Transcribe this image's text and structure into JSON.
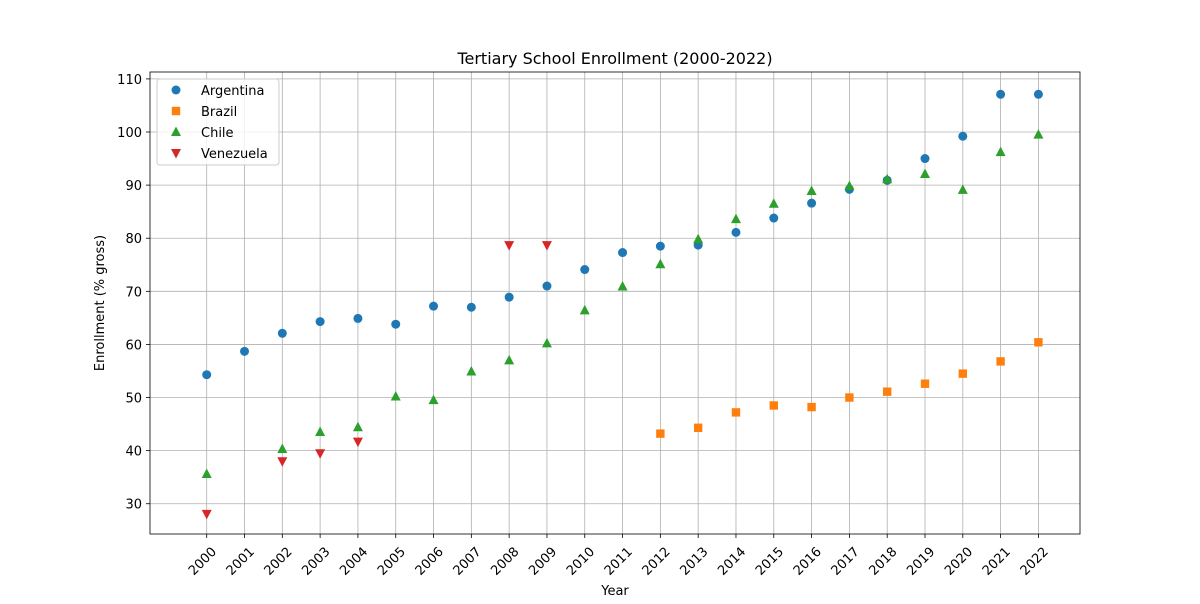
{
  "chart_data": {
    "type": "scatter",
    "title": "Tertiary School Enrollment (2000-2022)",
    "xlabel": "Year",
    "ylabel": "Enrollment (% gross)",
    "x": [
      2000,
      2001,
      2002,
      2003,
      2004,
      2005,
      2006,
      2007,
      2008,
      2009,
      2010,
      2011,
      2012,
      2013,
      2014,
      2015,
      2016,
      2017,
      2018,
      2019,
      2020,
      2021,
      2022
    ],
    "xticks": [
      "2000",
      "2001",
      "2002",
      "2003",
      "2004",
      "2005",
      "2006",
      "2007",
      "2008",
      "2009",
      "2010",
      "2011",
      "2012",
      "2013",
      "2014",
      "2015",
      "2016",
      "2017",
      "2018",
      "2019",
      "2020",
      "2021",
      "2022"
    ],
    "xlim": [
      1998.5,
      2023.1
    ],
    "yticks": [
      30,
      40,
      50,
      60,
      70,
      80,
      90,
      100,
      110
    ],
    "ylim": [
      24.3,
      111.3
    ],
    "grid": true,
    "legend_position": "top-left",
    "series": [
      {
        "name": "Argentina",
        "color": "#1f77b4",
        "marker": "circle",
        "values": [
          54.3,
          58.7,
          62.1,
          64.3,
          64.9,
          63.8,
          67.2,
          67.0,
          68.9,
          71.0,
          74.1,
          77.3,
          78.5,
          78.7,
          81.1,
          83.8,
          86.6,
          89.2,
          90.9,
          95.0,
          99.2,
          107.1,
          107.1
        ]
      },
      {
        "name": "Brazil",
        "color": "#ff7f0e",
        "marker": "square",
        "values": [
          null,
          null,
          null,
          null,
          null,
          null,
          null,
          null,
          null,
          null,
          null,
          null,
          43.2,
          44.3,
          47.2,
          48.5,
          48.2,
          50.0,
          51.1,
          52.6,
          54.5,
          56.8,
          60.4
        ]
      },
      {
        "name": "Chile",
        "color": "#2ca02c",
        "marker": "triangle-up",
        "values": [
          35.6,
          null,
          40.3,
          43.5,
          44.4,
          50.2,
          49.5,
          54.9,
          57.0,
          60.2,
          66.4,
          70.9,
          75.1,
          79.8,
          83.6,
          86.5,
          88.9,
          89.8,
          91.1,
          92.1,
          89.1,
          96.2,
          99.5
        ]
      },
      {
        "name": "Venezuela",
        "color": "#d62728",
        "marker": "triangle-down",
        "values": [
          28.1,
          null,
          38.0,
          39.5,
          41.7,
          null,
          null,
          null,
          78.7,
          78.7,
          null,
          null,
          null,
          null,
          null,
          null,
          null,
          null,
          null,
          null,
          null,
          null,
          null
        ]
      }
    ]
  }
}
